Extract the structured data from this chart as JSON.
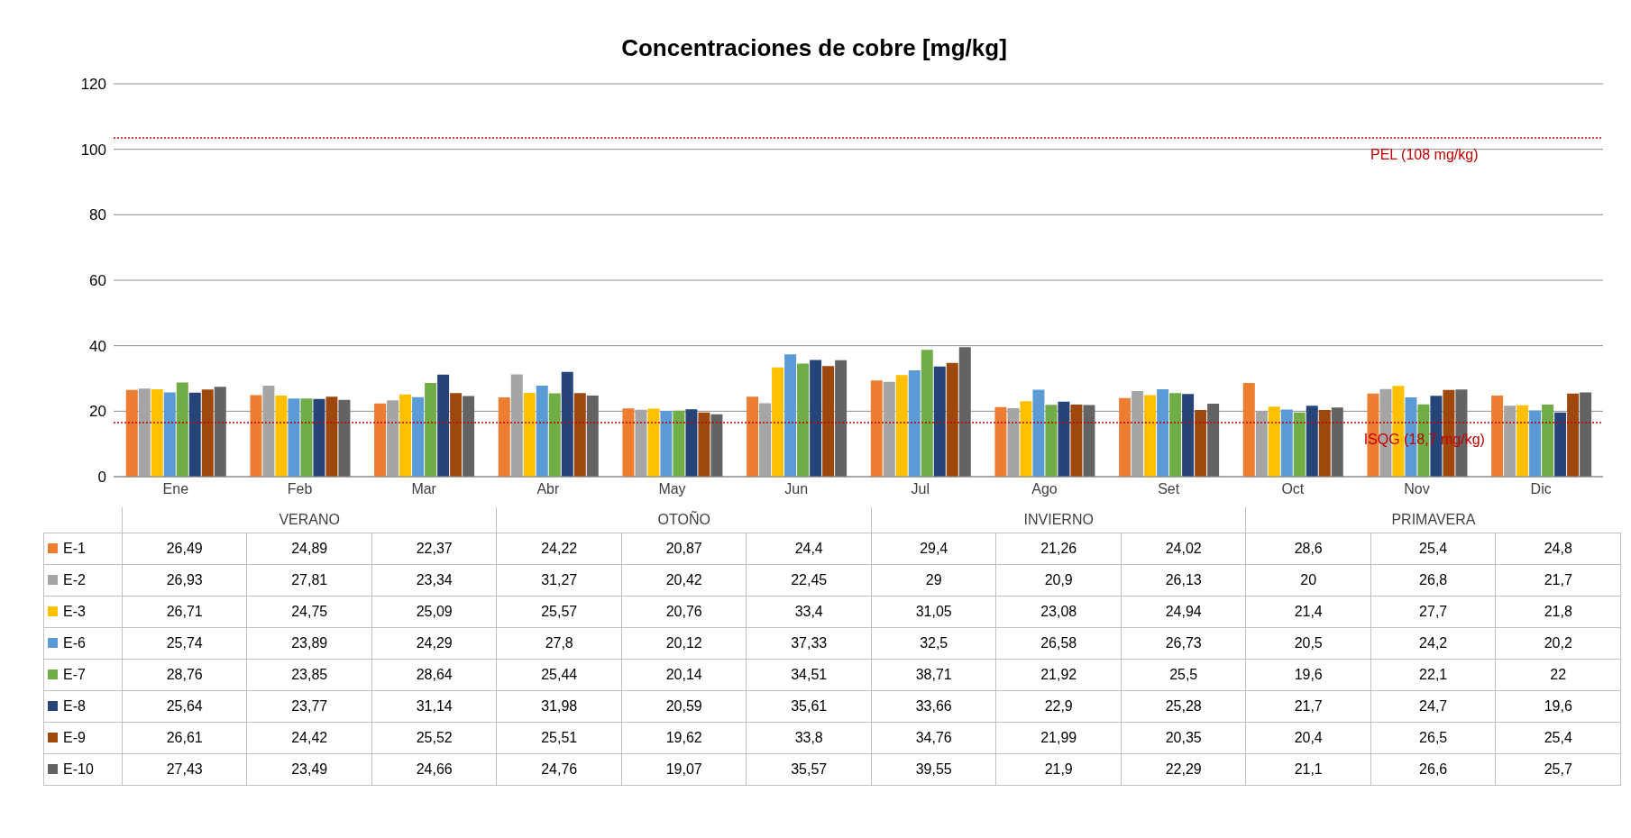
{
  "chart_data": {
    "type": "bar",
    "title": "Concentraciones de cobre [mg/kg]",
    "categories": [
      "Ene",
      "Feb",
      "Mar",
      "Abr",
      "May",
      "Jun",
      "Jul",
      "Ago",
      "Set",
      "Oct",
      "Nov",
      "Dic"
    ],
    "series": [
      {
        "name": "E-1",
        "color": "#ed7d31",
        "values": [
          26.49,
          24.89,
          22.37,
          24.22,
          20.87,
          24.4,
          29.4,
          21.26,
          24.02,
          28.6,
          25.4,
          24.8
        ],
        "value_labels": [
          "26,49",
          "24,89",
          "22,37",
          "24,22",
          "20,87",
          "24,4",
          "29,4",
          "21,26",
          "24,02",
          "28,6",
          "25,4",
          "24,8"
        ]
      },
      {
        "name": "E-2",
        "color": "#a5a5a5",
        "values": [
          26.93,
          27.81,
          23.34,
          31.27,
          20.42,
          22.45,
          29,
          20.9,
          26.13,
          20,
          26.8,
          21.7
        ],
        "value_labels": [
          "26,93",
          "27,81",
          "23,34",
          "31,27",
          "20,42",
          "22,45",
          "29",
          "20,9",
          "26,13",
          "20",
          "26,8",
          "21,7"
        ]
      },
      {
        "name": "E-3",
        "color": "#ffc000",
        "values": [
          26.71,
          24.75,
          25.09,
          25.57,
          20.76,
          33.4,
          31.05,
          23.08,
          24.94,
          21.4,
          27.7,
          21.8
        ],
        "value_labels": [
          "26,71",
          "24,75",
          "25,09",
          "25,57",
          "20,76",
          "33,4",
          "31,05",
          "23,08",
          "24,94",
          "21,4",
          "27,7",
          "21,8"
        ]
      },
      {
        "name": "E-6",
        "color": "#5b9bd5",
        "values": [
          25.74,
          23.89,
          24.29,
          27.8,
          20.12,
          37.33,
          32.5,
          26.58,
          26.73,
          20.5,
          24.2,
          20.2
        ],
        "value_labels": [
          "25,74",
          "23,89",
          "24,29",
          "27,8",
          "20,12",
          "37,33",
          "32,5",
          "26,58",
          "26,73",
          "20,5",
          "24,2",
          "20,2"
        ]
      },
      {
        "name": "E-7",
        "color": "#70ad47",
        "values": [
          28.76,
          23.85,
          28.64,
          25.44,
          20.14,
          34.51,
          38.71,
          21.92,
          25.5,
          19.6,
          22.1,
          22
        ],
        "value_labels": [
          "28,76",
          "23,85",
          "28,64",
          "25,44",
          "20,14",
          "34,51",
          "38,71",
          "21,92",
          "25,5",
          "19,6",
          "22,1",
          "22"
        ]
      },
      {
        "name": "E-8",
        "color": "#264478",
        "values": [
          25.64,
          23.77,
          31.14,
          31.98,
          20.59,
          35.61,
          33.66,
          22.9,
          25.28,
          21.7,
          24.7,
          19.6
        ],
        "value_labels": [
          "25,64",
          "23,77",
          "31,14",
          "31,98",
          "20,59",
          "35,61",
          "33,66",
          "22,9",
          "25,28",
          "21,7",
          "24,7",
          "19,6"
        ]
      },
      {
        "name": "E-9",
        "color": "#9e480e",
        "values": [
          26.61,
          24.42,
          25.52,
          25.51,
          19.62,
          33.8,
          34.76,
          21.99,
          20.35,
          20.4,
          26.5,
          25.4
        ],
        "value_labels": [
          "26,61",
          "24,42",
          "25,52",
          "25,51",
          "19,62",
          "33,8",
          "34,76",
          "21,99",
          "20,35",
          "20,4",
          "26,5",
          "25,4"
        ]
      },
      {
        "name": "E-10",
        "color": "#636363",
        "values": [
          27.43,
          23.49,
          24.66,
          24.76,
          19.07,
          35.57,
          39.55,
          21.9,
          22.29,
          21.1,
          26.6,
          25.7
        ],
        "value_labels": [
          "27,43",
          "23,49",
          "24,66",
          "24,76",
          "19,07",
          "35,57",
          "39,55",
          "21,9",
          "22,29",
          "21,1",
          "26,6",
          "25,7"
        ]
      }
    ],
    "ylim": [
      0,
      120
    ],
    "yticks": [
      0,
      20,
      40,
      60,
      80,
      100,
      120
    ],
    "grid": "y",
    "legend": "bottom",
    "ref_lines": [
      {
        "axis": "y",
        "value": 103.5,
        "label": "PEL (108 mg/kg)",
        "color": "#c00000",
        "line_style": "dotted"
      },
      {
        "axis": "y",
        "value": 16.5,
        "label": "ISQG (18,7 mg/kg)",
        "color": "#c00000",
        "line_style": "dotted"
      }
    ],
    "annotations": [
      "VERANO",
      "OTOÑO",
      "INVIERNO",
      "PRIMAVERA"
    ]
  }
}
